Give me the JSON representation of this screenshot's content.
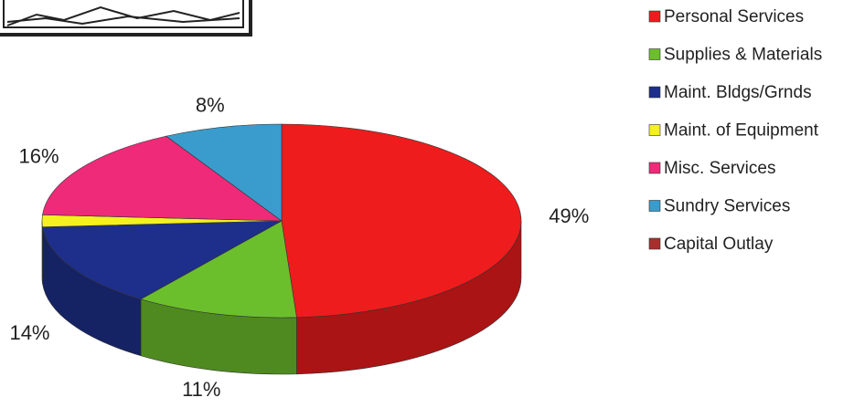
{
  "chart_data": {
    "type": "pie",
    "categories": [
      "Personal Services",
      "Supplies & Materials",
      "Maint. Bldgs/Grnds",
      "Maint. of Equipment",
      "Misc. Services",
      "Sundry Services",
      "Capital Outlay"
    ],
    "values": [
      49,
      11,
      14,
      2,
      16,
      8,
      0
    ],
    "value_labels": [
      "49%",
      "11%",
      "14%",
      null,
      "16%",
      "8%",
      null
    ],
    "colors": [
      "#ee1c1c",
      "#6cbf2c",
      "#1d2f8a",
      "#f5f020",
      "#ef2a78",
      "#3a9ccc",
      "#a8302c"
    ]
  }
}
